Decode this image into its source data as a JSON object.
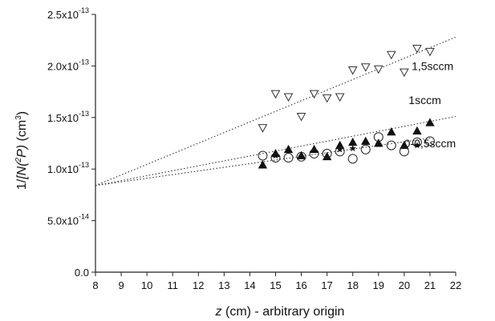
{
  "chart_data": {
    "type": "scatter",
    "xlabel_italic": "z",
    "xlabel_rest": " (cm) - arbitrary origin",
    "ylabel_prefix": "1/",
    "ylabel_italic": "[N(",
    "ylabel_sup": "2",
    "ylabel_italic2": "P)",
    "ylabel_unit_open": "  (cm",
    "ylabel_unit_sup": "3",
    "ylabel_unit_close": ")",
    "xlim": [
      8,
      22
    ],
    "ylim": [
      0,
      2.5e-13
    ],
    "x_ticks": [
      "8",
      "9",
      "10",
      "11",
      "12",
      "13",
      "14",
      "15",
      "16",
      "17",
      "18",
      "19",
      "20",
      "21",
      "22"
    ],
    "y_ticks": [
      {
        "value": 0,
        "label": "0.0"
      },
      {
        "value": 5e-14,
        "label": "5.0x10",
        "exp": "-14"
      },
      {
        "value": 1e-13,
        "label": "1.0x10",
        "exp": "-13"
      },
      {
        "value": 1.5e-13,
        "label": "1.5x10",
        "exp": "-13"
      },
      {
        "value": 2e-13,
        "label": "2.0x10",
        "exp": "-13"
      },
      {
        "value": 2.5e-13,
        "label": "2.5x10",
        "exp": "-13"
      }
    ],
    "grid": false,
    "series": [
      {
        "name": "1,5sccm",
        "marker": "triangle-down-open",
        "points": [
          [
            14.5,
            1.4e-13
          ],
          [
            15.0,
            1.73e-13
          ],
          [
            15.5,
            1.7e-13
          ],
          [
            16.0,
            1.51e-13
          ],
          [
            16.5,
            1.73e-13
          ],
          [
            17.0,
            1.69e-13
          ],
          [
            17.5,
            1.7e-13
          ],
          [
            18.0,
            1.96e-13
          ],
          [
            18.5,
            1.99e-13
          ],
          [
            19.0,
            1.97e-13
          ],
          [
            19.5,
            2.11e-13
          ],
          [
            20.0,
            1.94e-13
          ],
          [
            20.5,
            2.17e-13
          ],
          [
            21.0,
            2.14e-13
          ]
        ],
        "fit": {
          "x0": 8,
          "y0": 8.4e-14,
          "x1": 22,
          "y1": 2.28e-13
        }
      },
      {
        "name": "1sccm",
        "marker": "triangle-up-filled",
        "points": [
          [
            14.5,
            1.04e-13
          ],
          [
            15.0,
            1.15e-13
          ],
          [
            15.5,
            1.19e-13
          ],
          [
            16.0,
            1.13e-13
          ],
          [
            16.5,
            1.19e-13
          ],
          [
            17.0,
            1.12e-13
          ],
          [
            17.5,
            1.23e-13
          ],
          [
            18.0,
            1.26e-13
          ],
          [
            18.5,
            1.27e-13
          ],
          [
            19.0,
            1.25e-13
          ],
          [
            19.5,
            1.36e-13
          ],
          [
            20.0,
            1.23e-13
          ],
          [
            20.5,
            1.37e-13
          ],
          [
            21.0,
            1.45e-13
          ]
        ],
        "fit": {
          "x0": 8,
          "y0": 8.4e-14,
          "x1": 22,
          "y1": 1.51e-13
        }
      },
      {
        "name": "0-0,5sccm",
        "marker": "circle-open",
        "extra_marker": "star-filled",
        "points": [
          [
            14.5,
            1.13e-13
          ],
          [
            15.0,
            1.11e-13
          ],
          [
            15.5,
            1.11e-13
          ],
          [
            16.0,
            1.12e-13
          ],
          [
            16.5,
            1.15e-13
          ],
          [
            17.0,
            1.15e-13
          ],
          [
            17.5,
            1.17e-13
          ],
          [
            18.0,
            1.1e-13
          ],
          [
            18.5,
            1.19e-13
          ],
          [
            19.0,
            1.31e-13
          ],
          [
            19.5,
            1.23e-13
          ],
          [
            20.0,
            1.17e-13
          ],
          [
            20.5,
            1.26e-13
          ],
          [
            21.0,
            1.27e-13
          ]
        ],
        "star_points": [
          [
            15.0,
            1.13e-13
          ],
          [
            16.0,
            1.12e-13
          ],
          [
            17.5,
            1.19e-13
          ],
          [
            18.0,
            1.2e-13
          ],
          [
            19.0,
            1.24e-13
          ],
          [
            20.5,
            1.23e-13
          ]
        ],
        "fit": {
          "x0": 8,
          "y0": 8.4e-14,
          "x1": 21,
          "y1": 1.3e-13
        }
      }
    ]
  }
}
